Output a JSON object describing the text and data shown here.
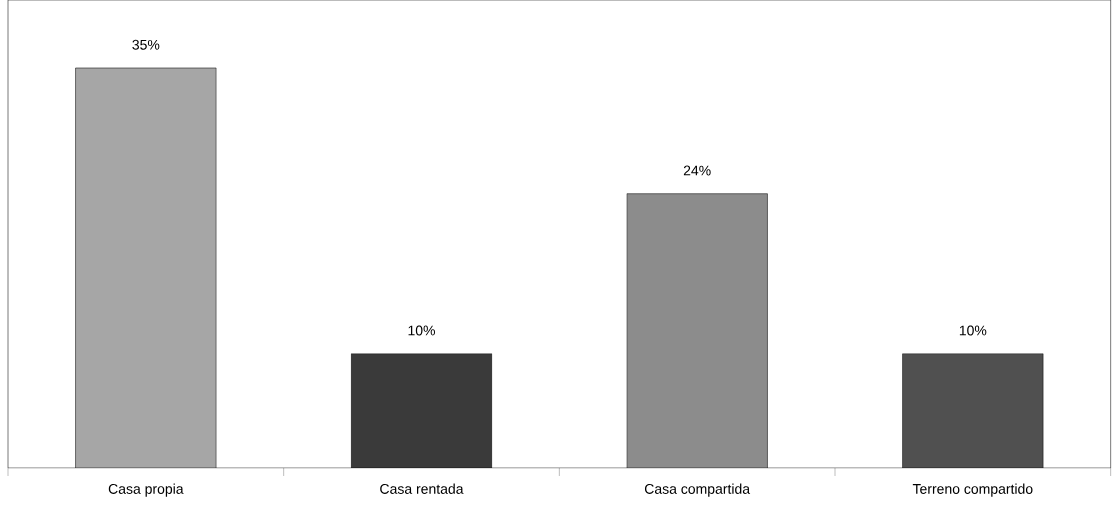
{
  "chart_data": {
    "type": "bar",
    "categories": [
      "Casa propia",
      "Casa rentada",
      "Casa compartida",
      "Terreno compartido"
    ],
    "values": [
      35,
      10,
      24,
      10
    ],
    "colors": [
      "#a6a6a6",
      "#3a3a3a",
      "#8c8c8c",
      "#505050"
    ],
    "value_labels": [
      "35%",
      "10%",
      "24%",
      "10%"
    ]
  }
}
